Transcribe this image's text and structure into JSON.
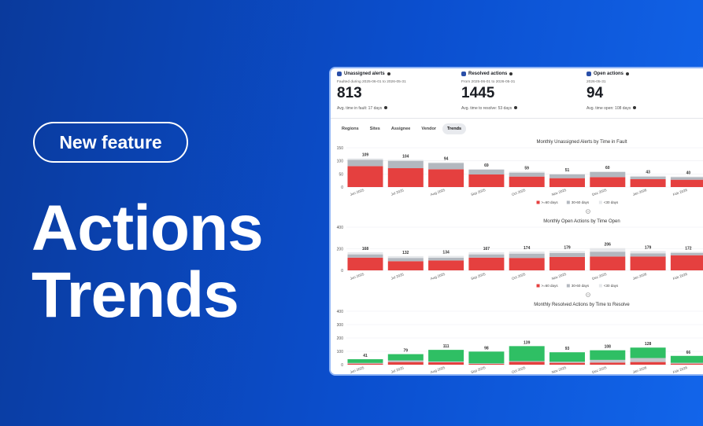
{
  "badge": "New feature",
  "headline": [
    "Actions",
    "Trends"
  ],
  "stats": [
    {
      "label": "Unassigned alerts",
      "period": "Faulted during 2025-06-01 to 2026-05-31",
      "value": 813,
      "note": "Avg. time in fault: 17 days"
    },
    {
      "label": "Resolved actions",
      "period": "From 2025-06-01 to 2026-05-31",
      "value": 1445,
      "note": "Avg. time to resolve: 53 days"
    },
    {
      "label": "Open actions",
      "period": "2026-05-31",
      "value": 94,
      "note": "Avg. time open: 108 days"
    }
  ],
  "tabs": [
    "Regions",
    "Sites",
    "Assignee",
    "Vendor",
    "Trends"
  ],
  "active_tab": 4,
  "chart_data": [
    {
      "type": "stacked-bar",
      "title": "Monthly Unassigned Alerts by Time in Fault",
      "categories": [
        "Jun 2025",
        "Jul 2025",
        "Aug 2025",
        "Sep 2025",
        "Oct 2025",
        "Nov 2025",
        "Dec 2025",
        "Jan 2026",
        "Feb 2026"
      ],
      "series": [
        {
          "name": ">=60 days",
          "color": "#e5403f",
          "values": [
            80,
            72,
            68,
            48,
            40,
            34,
            38,
            30,
            28
          ]
        },
        {
          "name": "30-60 days",
          "color": "#b3b8bf",
          "values": [
            24,
            28,
            24,
            18,
            15,
            14,
            19,
            10,
            10
          ]
        },
        {
          "name": "<30 days",
          "color": "#e6e8eb",
          "values": [
            5,
            4,
            2,
            3,
            4,
            3,
            3,
            3,
            2
          ]
        }
      ],
      "totals": [
        109,
        104,
        94,
        69,
        59,
        51,
        60,
        43,
        40
      ],
      "ylim": [
        0,
        150
      ],
      "yticks": [
        0,
        50,
        100,
        150
      ],
      "grid": true,
      "legend": "bottom"
    },
    {
      "type": "stacked-bar",
      "title": "Monthly Open Actions by Time Open",
      "categories": [
        "Jun 2025",
        "Jul 2025",
        "Aug 2025",
        "Sep 2025",
        "Oct 2025",
        "Nov 2025",
        "Dec 2025",
        "Jan 2026",
        "Feb 2026"
      ],
      "series": [
        {
          "name": ">=60 days",
          "color": "#e5403f",
          "values": [
            118,
            85,
            92,
            118,
            115,
            125,
            128,
            128,
            140
          ]
        },
        {
          "name": "30-60 days",
          "color": "#b3b8bf",
          "values": [
            30,
            30,
            25,
            30,
            40,
            35,
            45,
            30,
            22
          ]
        },
        {
          "name": "<30 days",
          "color": "#e6e8eb",
          "values": [
            20,
            17,
            17,
            19,
            19,
            19,
            33,
            21,
            10
          ]
        }
      ],
      "totals": [
        168,
        132,
        134,
        167,
        174,
        179,
        206,
        179,
        172
      ],
      "ylim": [
        0,
        400
      ],
      "yticks": [
        0,
        200,
        400
      ],
      "grid": true,
      "legend": "bottom"
    },
    {
      "type": "stacked-bar",
      "title": "Monthly Resolved Actions by Time to Resolve",
      "categories": [
        "Jun 2025",
        "Jul 2025",
        "Aug 2025",
        "Sep 2025",
        "Oct 2025",
        "Nov 2025",
        "Dec 2025",
        "Jan 2026",
        "Feb 2026"
      ],
      "series": [
        {
          "color": "#e5403f",
          "values": [
            8,
            20,
            18,
            6,
            22,
            14,
            16,
            20,
            8
          ]
        },
        {
          "color": "#c3c7cc",
          "values": [
            5,
            12,
            6,
            4,
            5,
            8,
            20,
            30,
            6
          ]
        },
        {
          "color": "#2fbf64",
          "values": [
            28,
            47,
            87,
            88,
            112,
            71,
            72,
            78,
            52
          ]
        }
      ],
      "totals": [
        41,
        79,
        111,
        98,
        139,
        93,
        108,
        128,
        66
      ],
      "ylim": [
        0,
        400
      ],
      "yticks": [
        0,
        100,
        200,
        300,
        400
      ],
      "grid": true
    }
  ]
}
